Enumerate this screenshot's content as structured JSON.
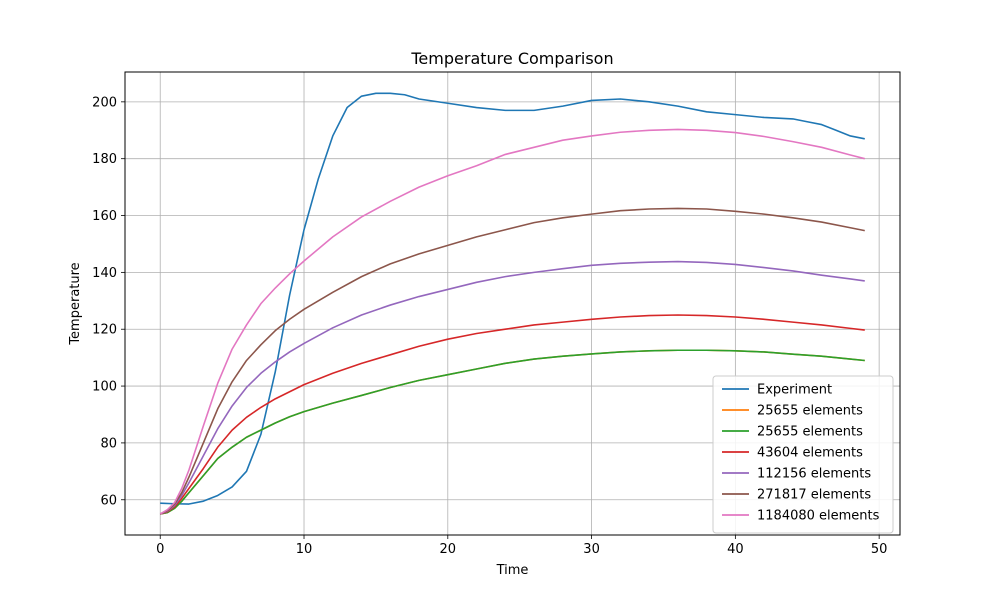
{
  "chart_data": {
    "type": "line",
    "title": "Temperature Comparison",
    "xlabel": "Time",
    "ylabel": "Temperature",
    "xlim": [
      -2.45,
      51.45
    ],
    "ylim": [
      47.6,
      210.5
    ],
    "xticks": [
      0,
      10,
      20,
      30,
      40,
      50
    ],
    "yticks": [
      60,
      80,
      100,
      120,
      140,
      160,
      180,
      200
    ],
    "grid": true,
    "legend_position": "lower-right",
    "series": [
      {
        "name": "Experiment",
        "color": "#1f77b4",
        "x": [
          0,
          1,
          2,
          3,
          4,
          5,
          6,
          7,
          8,
          9,
          10,
          11,
          12,
          13,
          14,
          15,
          16,
          17,
          18,
          20,
          22,
          24,
          26,
          28,
          30,
          32,
          34,
          36,
          38,
          40,
          42,
          44,
          45,
          46,
          47,
          48,
          49
        ],
        "y": [
          58.8,
          58.6,
          58.5,
          59.5,
          61.5,
          64.5,
          70,
          83,
          105,
          132,
          155,
          173,
          188,
          198,
          202,
          203,
          203,
          202.5,
          201,
          199.5,
          198,
          197,
          197,
          198.5,
          200.5,
          201,
          200,
          198.5,
          196.5,
          195.5,
          194.5,
          194,
          193,
          192,
          190,
          188,
          187
        ]
      },
      {
        "name": "25655 elements",
        "color": "#ff7f0e",
        "x": [
          0,
          0.5,
          1,
          1.5,
          2,
          3,
          4,
          5,
          6,
          7,
          8,
          9,
          10,
          12,
          14,
          16,
          18,
          20,
          22,
          24,
          26,
          28,
          30,
          32,
          34,
          36,
          38,
          40,
          42,
          44,
          46,
          48,
          49
        ],
        "y": [
          55,
          55.5,
          57,
          59.5,
          62.5,
          68.5,
          74.5,
          78.5,
          82,
          84.5,
          87,
          89.2,
          91,
          94,
          96.7,
          99.5,
          102,
          104,
          106,
          108,
          109.5,
          110.5,
          111.3,
          112,
          112.4,
          112.6,
          112.6,
          112.4,
          112,
          111.2,
          110.5,
          109.5,
          109
        ]
      },
      {
        "name": "25655 elements",
        "color": "#2ca02c",
        "x": [
          0,
          0.5,
          1,
          1.5,
          2,
          3,
          4,
          5,
          6,
          7,
          8,
          9,
          10,
          12,
          14,
          16,
          18,
          20,
          22,
          24,
          26,
          28,
          30,
          32,
          34,
          36,
          38,
          40,
          42,
          44,
          46,
          48,
          49
        ],
        "y": [
          55,
          55.5,
          57,
          59.5,
          62.5,
          68.5,
          74.5,
          78.5,
          82,
          84.5,
          87,
          89.2,
          91,
          94,
          96.7,
          99.5,
          102,
          104,
          106,
          108,
          109.5,
          110.5,
          111.3,
          112,
          112.4,
          112.6,
          112.6,
          112.4,
          112,
          111.2,
          110.5,
          109.5,
          109
        ]
      },
      {
        "name": "43604 elements",
        "color": "#d62728",
        "x": [
          0,
          0.5,
          1,
          1.5,
          2,
          3,
          4,
          5,
          6,
          7,
          8,
          9,
          10,
          12,
          14,
          16,
          18,
          20,
          22,
          24,
          26,
          28,
          30,
          32,
          34,
          36,
          38,
          40,
          42,
          44,
          46,
          48,
          49
        ],
        "y": [
          55,
          55.8,
          57.5,
          60.5,
          64,
          71,
          78.5,
          84.5,
          89,
          92.5,
          95.5,
          98,
          100.5,
          104.5,
          108,
          111,
          114,
          116.5,
          118.5,
          120,
          121.5,
          122.5,
          123.5,
          124.3,
          124.8,
          125,
          124.8,
          124.3,
          123.5,
          122.5,
          121.5,
          120.3,
          119.7
        ]
      },
      {
        "name": "112156 elements",
        "color": "#9467bd",
        "x": [
          0,
          0.5,
          1,
          1.5,
          2,
          3,
          4,
          5,
          6,
          7,
          8,
          9,
          10,
          12,
          14,
          16,
          18,
          20,
          22,
          24,
          26,
          28,
          30,
          32,
          34,
          36,
          38,
          40,
          42,
          44,
          46,
          48,
          49
        ],
        "y": [
          55,
          56,
          58,
          61.5,
          66,
          75.5,
          85,
          93,
          99.5,
          104.5,
          108.5,
          112,
          115,
          120.5,
          125,
          128.5,
          131.5,
          134,
          136.5,
          138.5,
          140,
          141.3,
          142.5,
          143.2,
          143.6,
          143.8,
          143.5,
          142.8,
          141.7,
          140.5,
          139,
          137.7,
          137
        ]
      },
      {
        "name": "271817 elements",
        "color": "#8c564b",
        "x": [
          0,
          0.5,
          1,
          1.5,
          2,
          3,
          4,
          5,
          6,
          7,
          8,
          9,
          10,
          12,
          14,
          16,
          18,
          20,
          22,
          24,
          26,
          28,
          30,
          32,
          34,
          36,
          38,
          40,
          42,
          44,
          46,
          48,
          49
        ],
        "y": [
          55,
          56.2,
          58.5,
          62.5,
          68,
          80,
          92,
          101.5,
          109,
          114.5,
          119.5,
          123.5,
          127,
          133,
          138.5,
          143,
          146.5,
          149.5,
          152.5,
          155,
          157.5,
          159.2,
          160.5,
          161.7,
          162.3,
          162.5,
          162.3,
          161.5,
          160.5,
          159.2,
          157.7,
          155.7,
          154.7
        ]
      },
      {
        "name": "1184080 elements",
        "color": "#e377c2",
        "x": [
          0,
          0.5,
          1,
          1.5,
          2,
          3,
          4,
          5,
          6,
          7,
          8,
          9,
          10,
          12,
          14,
          16,
          18,
          20,
          22,
          24,
          26,
          28,
          30,
          32,
          34,
          36,
          38,
          40,
          42,
          44,
          46,
          48,
          49
        ],
        "y": [
          55,
          56.5,
          59,
          64,
          70.5,
          86,
          101,
          113,
          121.5,
          129,
          134.5,
          139.5,
          144,
          152.5,
          159.5,
          165,
          170,
          174,
          177.5,
          181.5,
          184,
          186.5,
          188,
          189.3,
          190,
          190.3,
          190,
          189.2,
          187.8,
          186,
          184,
          181.3,
          180
        ]
      }
    ]
  }
}
